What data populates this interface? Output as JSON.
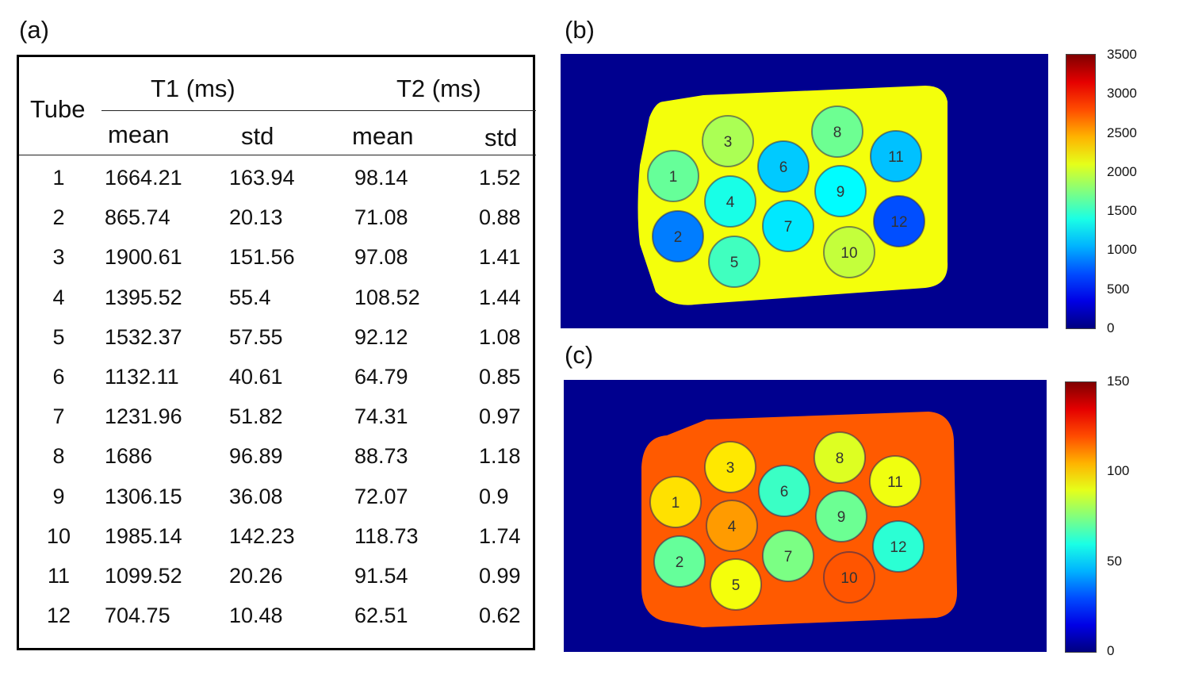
{
  "panels": {
    "a": "(a)",
    "b": "(b)",
    "c": "(c)"
  },
  "table": {
    "header": {
      "tube": "Tube",
      "t1": "T1 (ms)",
      "t2": "T2 (ms)",
      "mean": "mean",
      "std": "std"
    },
    "rows": [
      [
        "1",
        "1664.21",
        "163.94",
        "98.14",
        "1.52"
      ],
      [
        "2",
        "865.74",
        "20.13",
        "71.08",
        "0.88"
      ],
      [
        "3",
        "1900.61",
        "151.56",
        "97.08",
        "1.41"
      ],
      [
        "4",
        "1395.52",
        "55.4",
        "108.52",
        "1.44"
      ],
      [
        "5",
        "1532.37",
        "57.55",
        "92.12",
        "1.08"
      ],
      [
        "6",
        "1132.11",
        "40.61",
        "64.79",
        "0.85"
      ],
      [
        "7",
        "1231.96",
        "51.82",
        "74.31",
        "0.97"
      ],
      [
        "8",
        "1686",
        "96.89",
        "88.73",
        "1.18"
      ],
      [
        "9",
        "1306.15",
        "36.08",
        "72.07",
        "0.9"
      ],
      [
        "10",
        "1985.14",
        "142.23",
        "118.73",
        "1.74"
      ],
      [
        "11",
        "1099.52",
        "20.26",
        "91.54",
        "0.99"
      ],
      [
        "12",
        "704.75",
        "10.48",
        "62.51",
        "0.62"
      ]
    ]
  },
  "maps": {
    "b": {
      "colorbar_ticks": [
        "3500",
        "3000",
        "2500",
        "2000",
        "1500",
        "1000",
        "500",
        "0"
      ],
      "range": [
        0,
        3500
      ],
      "background_value": 2150
    },
    "c": {
      "colorbar_ticks": [
        "150",
        "100",
        "50",
        "0"
      ],
      "range": [
        0,
        150
      ],
      "background_value": 118
    }
  },
  "tube_labels": [
    "1",
    "2",
    "3",
    "4",
    "5",
    "6",
    "7",
    "8",
    "9",
    "10",
    "11",
    "12"
  ],
  "colors": {
    "map_background": "#00008f"
  }
}
